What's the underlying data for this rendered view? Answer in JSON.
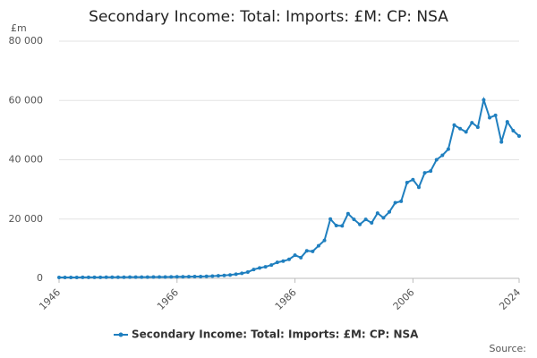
{
  "chart_data": {
    "type": "line",
    "title": "Secondary Income: Total: Imports: £M: CP: NSA",
    "y_unit": "£m",
    "source": "Source:",
    "x": [
      1946,
      1947,
      1948,
      1949,
      1950,
      1951,
      1952,
      1953,
      1954,
      1955,
      1956,
      1957,
      1958,
      1959,
      1960,
      1961,
      1962,
      1963,
      1964,
      1965,
      1966,
      1967,
      1968,
      1969,
      1970,
      1971,
      1972,
      1973,
      1974,
      1975,
      1976,
      1977,
      1978,
      1979,
      1980,
      1981,
      1982,
      1983,
      1984,
      1985,
      1986,
      1987,
      1988,
      1989,
      1990,
      1991,
      1992,
      1993,
      1994,
      1995,
      1996,
      1997,
      1998,
      1999,
      2000,
      2001,
      2002,
      2003,
      2004,
      2005,
      2006,
      2007,
      2008,
      2009,
      2010,
      2011,
      2012,
      2013,
      2014,
      2015,
      2016,
      2017,
      2018,
      2019,
      2020,
      2021,
      2022,
      2023,
      2024
    ],
    "series": [
      {
        "name": "Secondary Income: Total: Imports: £M: CP: NSA",
        "color": "#1f7fbf",
        "values": [
          300,
          300,
          310,
          320,
          330,
          340,
          350,
          350,
          360,
          370,
          380,
          390,
          400,
          410,
          420,
          430,
          440,
          450,
          470,
          490,
          510,
          530,
          560,
          590,
          620,
          680,
          750,
          850,
          1000,
          1150,
          1400,
          1700,
          2100,
          3000,
          3500,
          3900,
          4500,
          5400,
          5800,
          6400,
          7800,
          7000,
          9300,
          9100,
          11000,
          12800,
          20000,
          17800,
          17700,
          21800,
          19900,
          18200,
          19900,
          18700,
          22000,
          20400,
          22400,
          25500,
          26000,
          32300,
          33300,
          30700,
          35600,
          36200,
          40000,
          41500,
          43600,
          51700,
          50500,
          49400,
          52500,
          51000,
          60200,
          54200,
          55000,
          46000,
          52800,
          49800,
          48000
        ]
      }
    ],
    "xlim": [
      1946,
      2024
    ],
    "xticks": [
      1946,
      1966,
      1986,
      2006,
      2024
    ],
    "ylim": [
      0,
      80000
    ],
    "yticks": [
      0,
      {
        "value": 20000,
        "label": "20 000"
      },
      {
        "value": 40000,
        "label": "40 000"
      },
      {
        "value": 60000,
        "label": "60 000"
      },
      {
        "value": 80000,
        "label": "80 000"
      }
    ],
    "grid": true
  }
}
